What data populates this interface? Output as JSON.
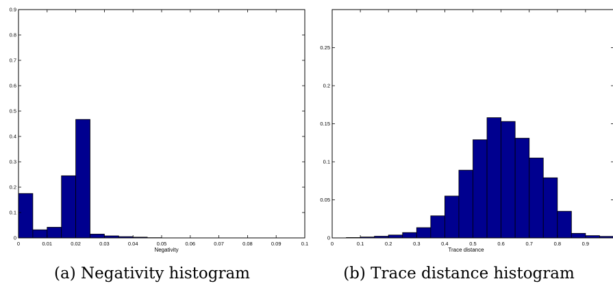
{
  "chart_data": [
    {
      "type": "bar",
      "xlabel": "Negativity",
      "xlim": [
        0,
        0.1
      ],
      "ylim": [
        0,
        0.9
      ],
      "xticks": [
        0,
        0.01,
        0.02,
        0.03,
        0.04,
        0.05,
        0.06,
        0.07,
        0.08,
        0.09,
        0.1
      ],
      "xtick_labels": [
        "0",
        "0.01",
        "0.02",
        "0.03",
        "0.04",
        "0.05",
        "0.06",
        "0.07",
        "0.08",
        "0.09",
        "0.1"
      ],
      "yticks": [
        0,
        0.1,
        0.2,
        0.3,
        0.4,
        0.5,
        0.6,
        0.7,
        0.8,
        0.9
      ],
      "ytick_labels": [
        "0",
        "0.1",
        "0.2",
        "0.3",
        "0.4",
        "0.5",
        "0.6",
        "0.7",
        "0.8",
        "0.9"
      ],
      "bin_width": 0.005,
      "bin_starts": [
        0,
        0.005,
        0.01,
        0.015,
        0.02,
        0.025,
        0.03,
        0.035,
        0.04,
        0.045
      ],
      "values": [
        0.175,
        0.032,
        0.042,
        0.245,
        0.467,
        0.015,
        0.008,
        0.005,
        0.003,
        0.001
      ],
      "bar_color": "#00008f",
      "grid": false,
      "caption": "(a) Negativity histogram"
    },
    {
      "type": "bar",
      "xlabel": "Trace distance",
      "xlim": [
        0,
        1
      ],
      "ylim": [
        0,
        0.3
      ],
      "xticks": [
        0,
        0.1,
        0.2,
        0.3,
        0.4,
        0.5,
        0.6,
        0.7,
        0.8,
        0.9
      ],
      "xtick_labels": [
        "0",
        "0.1",
        "0.2",
        "0.3",
        "0.4",
        "0.5",
        "0.6",
        "0.7",
        "0.8",
        "0.9"
      ],
      "yticks": [
        0,
        0.05,
        0.1,
        0.15,
        0.2,
        0.25
      ],
      "ytick_labels": [
        "0",
        "0.05",
        "0.1",
        "0.15",
        "0.2",
        "0.25"
      ],
      "bin_width": 0.05,
      "bin_starts": [
        0.05,
        0.1,
        0.15,
        0.2,
        0.25,
        0.3,
        0.35,
        0.4,
        0.45,
        0.5,
        0.55,
        0.6,
        0.65,
        0.7,
        0.75,
        0.8,
        0.85,
        0.9,
        0.95
      ],
      "values": [
        0.0005,
        0.0012,
        0.0022,
        0.0038,
        0.007,
        0.0135,
        0.029,
        0.055,
        0.089,
        0.129,
        0.158,
        0.153,
        0.131,
        0.105,
        0.079,
        0.035,
        0.006,
        0.003,
        0.002
      ],
      "bar_color": "#00008f",
      "grid": false,
      "caption": "(b) Trace distance histogram"
    }
  ]
}
